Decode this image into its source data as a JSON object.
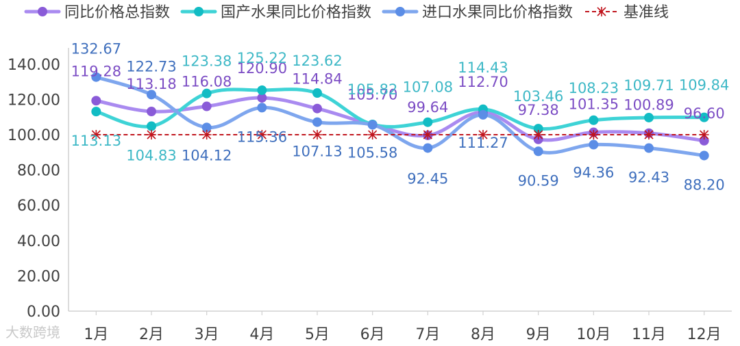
{
  "chart_data": {
    "type": "line",
    "categories": [
      "1月",
      "2月",
      "3月",
      "4月",
      "5月",
      "6月",
      "7月",
      "8月",
      "9月",
      "10月",
      "11月",
      "12月"
    ],
    "y_ticks": [
      "0.00",
      "20.00",
      "40.00",
      "60.00",
      "80.00",
      "100.00",
      "120.00",
      "140.00"
    ],
    "ylim": [
      0,
      150
    ],
    "grid": false,
    "legend_position": "top",
    "series": [
      {
        "name": "同比价格总指数",
        "color": "#a98af0",
        "marker_color": "#8a5bd8",
        "label_color": "#7b4cc4",
        "values": [
          119.28,
          113.18,
          116.08,
          120.9,
          114.84,
          105.7,
          99.64,
          112.7,
          97.38,
          101.35,
          100.89,
          96.6
        ],
        "labels": [
          "119.28",
          "113.18",
          "116.08",
          "120.90",
          "114.84",
          "105.70",
          "99.64",
          "112.70",
          "97.38",
          "101.35",
          "100.89",
          "96.60"
        ]
      },
      {
        "name": "国产水果同比价格指数",
        "color": "#3ed3d6",
        "marker_color": "#12bcc4",
        "label_color": "#3db8c6",
        "values": [
          113.13,
          104.83,
          123.38,
          125.22,
          123.62,
          105.82,
          107.08,
          114.43,
          103.46,
          108.23,
          109.71,
          109.84
        ],
        "labels": [
          "113.13",
          "104.83",
          "123.38",
          "125.22",
          "123.62",
          "105.82",
          "107.08",
          "114.43",
          "103.46",
          "108.23",
          "109.71",
          "109.84"
        ]
      },
      {
        "name": "进口水果同比价格指数",
        "color": "#7ea6ee",
        "marker_color": "#5b8de6",
        "label_color": "#3f6fbd",
        "values": [
          132.67,
          122.73,
          104.12,
          115.36,
          107.13,
          105.58,
          92.45,
          111.27,
          90.59,
          94.36,
          92.43,
          88.2
        ],
        "labels": [
          "132.67",
          "122.73",
          "104.12",
          "115.36",
          "107.13",
          "105.58",
          "92.45",
          "111.27",
          "90.59",
          "94.36",
          "92.43",
          "88.20"
        ]
      },
      {
        "name": "基准线",
        "color": "#c0141c",
        "marker_color": "#c0141c",
        "label_color": "#c0141c",
        "values": [
          100,
          100,
          100,
          100,
          100,
          100,
          100,
          100,
          100,
          100,
          100,
          100
        ]
      }
    ]
  },
  "watermark": "大数跨境"
}
